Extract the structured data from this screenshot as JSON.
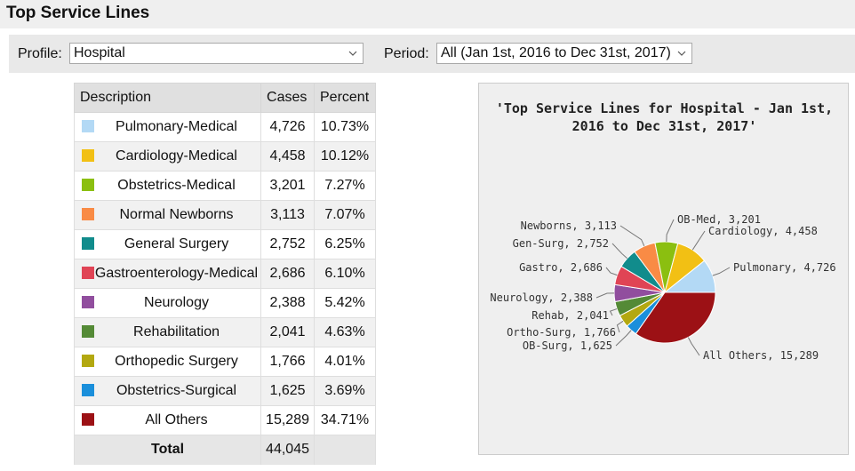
{
  "page": {
    "title": "Top Service Lines"
  },
  "filters": {
    "profile_label": "Profile:",
    "profile_value": "Hospital",
    "period_label": "Period:",
    "period_value": "All (Jan 1st, 2016 to Dec 31st, 2017)"
  },
  "table": {
    "headers": [
      "Description",
      "Cases",
      "Percent"
    ],
    "rows": [
      {
        "description": "Pulmonary-Medical",
        "cases": "4,726",
        "percent": "10.73%",
        "color": "#b3d9f5"
      },
      {
        "description": "Cardiology-Medical",
        "cases": "4,458",
        "percent": "10.12%",
        "color": "#f2c014"
      },
      {
        "description": "Obstetrics-Medical",
        "cases": "3,201",
        "percent": "7.27%",
        "color": "#8bbf10"
      },
      {
        "description": "Normal Newborns",
        "cases": "3,113",
        "percent": "7.07%",
        "color": "#f98b45"
      },
      {
        "description": "General Surgery",
        "cases": "2,752",
        "percent": "6.25%",
        "color": "#118c8c"
      },
      {
        "description": "Gastroenterology-Medical",
        "cases": "2,686",
        "percent": "6.10%",
        "color": "#e04455"
      },
      {
        "description": "Neurology",
        "cases": "2,388",
        "percent": "5.42%",
        "color": "#914e9e"
      },
      {
        "description": "Rehabilitation",
        "cases": "2,041",
        "percent": "4.63%",
        "color": "#548a36"
      },
      {
        "description": "Orthopedic Surgery",
        "cases": "1,766",
        "percent": "4.01%",
        "color": "#b3a810"
      },
      {
        "description": "Obstetrics-Surgical",
        "cases": "1,625",
        "percent": "3.69%",
        "color": "#1a8fdb"
      },
      {
        "description": "All Others",
        "cases": "15,289",
        "percent": "34.71%",
        "color": "#9c1115"
      }
    ],
    "total": {
      "label": "Total",
      "cases": "44,045",
      "percent": ""
    }
  },
  "chart_data": {
    "type": "pie",
    "title": "'Top Service Lines for Hospital - Jan 1st, 2016 to Dec 31st, 2017'",
    "slices": [
      {
        "label": "Pulmonary, 4,726",
        "value": 4726,
        "color": "#b3d9f5"
      },
      {
        "label": "All Others, 15,289",
        "value": 15289,
        "color": "#9c1115"
      },
      {
        "label": "OB-Surg, 1,625",
        "value": 1625,
        "color": "#1a8fdb"
      },
      {
        "label": "Ortho-Surg, 1,766",
        "value": 1766,
        "color": "#b3a810"
      },
      {
        "label": "Rehab, 2,041",
        "value": 2041,
        "color": "#548a36"
      },
      {
        "label": "Neurology, 2,388",
        "value": 2388,
        "color": "#914e9e"
      },
      {
        "label": "Gastro, 2,686",
        "value": 2686,
        "color": "#e04455"
      },
      {
        "label": "Gen-Surg, 2,752",
        "value": 2752,
        "color": "#118c8c"
      },
      {
        "label": "Newborns, 3,113",
        "value": 3113,
        "color": "#f98b45"
      },
      {
        "label": "OB-Med, 3,201",
        "value": 3201,
        "color": "#8bbf10"
      },
      {
        "label": "Cardiology, 4,458",
        "value": 4458,
        "color": "#f2c014"
      }
    ]
  }
}
